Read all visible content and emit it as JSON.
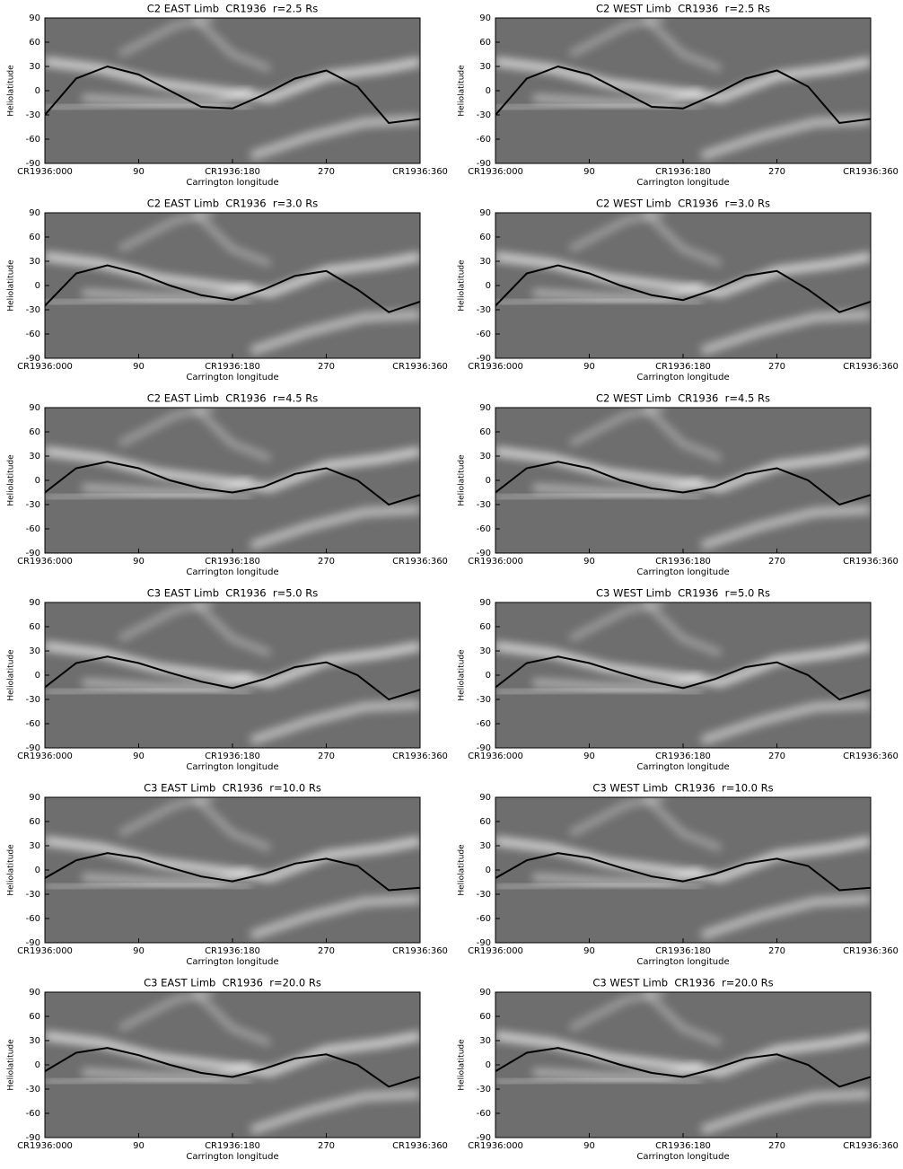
{
  "chart_data": [
    {
      "type": "line",
      "title": "C2 EAST Limb  CR1936  r=2.5 Rs",
      "xlabel": "Carrington longitude",
      "ylabel": "Heliolatitude",
      "x": [
        0,
        30,
        60,
        90,
        120,
        150,
        180,
        210,
        240,
        270,
        300,
        330,
        360
      ],
      "series": [
        {
          "color": "#000000",
          "values": [
            -30,
            15,
            30,
            20,
            0,
            -20,
            -22,
            -5,
            15,
            25,
            5,
            -40,
            -35
          ]
        }
      ],
      "xlim": [
        0,
        360
      ],
      "ylim": [
        -90,
        90
      ],
      "xticks": [
        {
          "value": 0,
          "label": "CR1936:000"
        },
        90,
        {
          "value": 180,
          "label": "CR1936:180"
        },
        270,
        {
          "value": 360,
          "label": "CR1936:360"
        }
      ],
      "yticks": [
        -90,
        -60,
        -30,
        0,
        30,
        60,
        90
      ]
    },
    {
      "type": "line",
      "title": "C2 WEST Limb  CR1936  r=2.5 Rs",
      "xlabel": "Carrington longitude",
      "ylabel": "Heliolatitude",
      "x": [
        0,
        30,
        60,
        90,
        120,
        150,
        180,
        210,
        240,
        270,
        300,
        330,
        360
      ],
      "series": [
        {
          "color": "#000000",
          "values": [
            -30,
            15,
            30,
            20,
            0,
            -20,
            -22,
            -5,
            15,
            25,
            5,
            -40,
            -35
          ]
        }
      ],
      "xlim": [
        0,
        360
      ],
      "ylim": [
        -90,
        90
      ],
      "xticks": [
        {
          "value": 0,
          "label": "CR1936:000"
        },
        90,
        {
          "value": 180,
          "label": "CR1936:180"
        },
        270,
        {
          "value": 360,
          "label": "CR1936:360"
        }
      ],
      "yticks": [
        -90,
        -60,
        -30,
        0,
        30,
        60,
        90
      ]
    },
    {
      "type": "line",
      "title": "C2 EAST Limb  CR1936  r=3.0 Rs",
      "xlabel": "Carrington longitude",
      "ylabel": "Heliolatitude",
      "x": [
        0,
        30,
        60,
        90,
        120,
        150,
        180,
        210,
        240,
        270,
        300,
        330,
        360
      ],
      "series": [
        {
          "color": "#000000",
          "values": [
            -25,
            15,
            25,
            15,
            0,
            -12,
            -18,
            -5,
            12,
            18,
            -5,
            -33,
            -20
          ]
        }
      ],
      "xlim": [
        0,
        360
      ],
      "ylim": [
        -90,
        90
      ],
      "xticks": [
        {
          "value": 0,
          "label": "CR1936:000"
        },
        90,
        {
          "value": 180,
          "label": "CR1936:180"
        },
        270,
        {
          "value": 360,
          "label": "CR1936:360"
        }
      ],
      "yticks": [
        -90,
        -60,
        -30,
        0,
        30,
        60,
        90
      ]
    },
    {
      "type": "line",
      "title": "C2 WEST Limb  CR1936  r=3.0 Rs",
      "xlabel": "Carrington longitude",
      "ylabel": "Heliolatitude",
      "x": [
        0,
        30,
        60,
        90,
        120,
        150,
        180,
        210,
        240,
        270,
        300,
        330,
        360
      ],
      "series": [
        {
          "color": "#000000",
          "values": [
            -25,
            15,
            25,
            15,
            0,
            -12,
            -18,
            -5,
            12,
            18,
            -5,
            -33,
            -20
          ]
        }
      ],
      "xlim": [
        0,
        360
      ],
      "ylim": [
        -90,
        90
      ],
      "xticks": [
        {
          "value": 0,
          "label": "CR1936:000"
        },
        90,
        {
          "value": 180,
          "label": "CR1936:180"
        },
        270,
        {
          "value": 360,
          "label": "CR1936:360"
        }
      ],
      "yticks": [
        -90,
        -60,
        -30,
        0,
        30,
        60,
        90
      ]
    },
    {
      "type": "line",
      "title": "C2 EAST Limb  CR1936  r=4.5 Rs",
      "xlabel": "Carrington longitude",
      "ylabel": "Heliolatitude",
      "x": [
        0,
        30,
        60,
        90,
        120,
        150,
        180,
        210,
        240,
        270,
        300,
        330,
        360
      ],
      "series": [
        {
          "color": "#000000",
          "values": [
            -15,
            15,
            23,
            15,
            0,
            -10,
            -15,
            -8,
            8,
            15,
            0,
            -30,
            -18
          ]
        }
      ],
      "xlim": [
        0,
        360
      ],
      "ylim": [
        -90,
        90
      ],
      "xticks": [
        {
          "value": 0,
          "label": "CR1936:000"
        },
        90,
        {
          "value": 180,
          "label": "CR1936:180"
        },
        270,
        {
          "value": 360,
          "label": "CR1936:360"
        }
      ],
      "yticks": [
        -90,
        -60,
        -30,
        0,
        30,
        60,
        90
      ]
    },
    {
      "type": "line",
      "title": "C2 WEST Limb  CR1936  r=4.5 Rs",
      "xlabel": "Carrington longitude",
      "ylabel": "Heliolatitude",
      "x": [
        0,
        30,
        60,
        90,
        120,
        150,
        180,
        210,
        240,
        270,
        300,
        330,
        360
      ],
      "series": [
        {
          "color": "#000000",
          "values": [
            -15,
            15,
            23,
            15,
            0,
            -10,
            -15,
            -8,
            8,
            15,
            0,
            -30,
            -18
          ]
        }
      ],
      "xlim": [
        0,
        360
      ],
      "ylim": [
        -90,
        90
      ],
      "xticks": [
        {
          "value": 0,
          "label": "CR1936:000"
        },
        90,
        {
          "value": 180,
          "label": "CR1936:180"
        },
        270,
        {
          "value": 360,
          "label": "CR1936:360"
        }
      ],
      "yticks": [
        -90,
        -60,
        -30,
        0,
        30,
        60,
        90
      ]
    },
    {
      "type": "line",
      "title": "C3 EAST Limb  CR1936  r=5.0 Rs",
      "xlabel": "Carrington longitude",
      "ylabel": "Heliolatitude",
      "x": [
        0,
        30,
        60,
        90,
        120,
        150,
        180,
        210,
        240,
        270,
        300,
        330,
        360
      ],
      "series": [
        {
          "color": "#000000",
          "values": [
            -15,
            15,
            23,
            15,
            3,
            -8,
            -16,
            -5,
            10,
            16,
            0,
            -30,
            -18
          ]
        }
      ],
      "xlim": [
        0,
        360
      ],
      "ylim": [
        -90,
        90
      ],
      "xticks": [
        {
          "value": 0,
          "label": "CR1936:000"
        },
        90,
        {
          "value": 180,
          "label": "CR1936:180"
        },
        270,
        {
          "value": 360,
          "label": "CR1936:360"
        }
      ],
      "yticks": [
        -90,
        -60,
        -30,
        0,
        30,
        60,
        90
      ]
    },
    {
      "type": "line",
      "title": "C3 WEST Limb  CR1936  r=5.0 Rs",
      "xlabel": "Carrington longitude",
      "ylabel": "Heliolatitude",
      "x": [
        0,
        30,
        60,
        90,
        120,
        150,
        180,
        210,
        240,
        270,
        300,
        330,
        360
      ],
      "series": [
        {
          "color": "#000000",
          "values": [
            -15,
            15,
            23,
            15,
            3,
            -8,
            -16,
            -5,
            10,
            16,
            0,
            -30,
            -18
          ]
        }
      ],
      "xlim": [
        0,
        360
      ],
      "ylim": [
        -90,
        90
      ],
      "xticks": [
        {
          "value": 0,
          "label": "CR1936:000"
        },
        90,
        {
          "value": 180,
          "label": "CR1936:180"
        },
        270,
        {
          "value": 360,
          "label": "CR1936:360"
        }
      ],
      "yticks": [
        -90,
        -60,
        -30,
        0,
        30,
        60,
        90
      ]
    },
    {
      "type": "line",
      "title": "C3 EAST Limb  CR1936  r=10.0 Rs",
      "xlabel": "Carrington longitude",
      "ylabel": "Heliolatitude",
      "x": [
        0,
        30,
        60,
        90,
        120,
        150,
        180,
        210,
        240,
        270,
        300,
        330,
        360
      ],
      "series": [
        {
          "color": "#000000",
          "values": [
            -10,
            12,
            21,
            15,
            3,
            -8,
            -14,
            -5,
            8,
            14,
            5,
            -25,
            -22
          ]
        }
      ],
      "xlim": [
        0,
        360
      ],
      "ylim": [
        -90,
        90
      ],
      "xticks": [
        {
          "value": 0,
          "label": "CR1936:000"
        },
        90,
        {
          "value": 180,
          "label": "CR1936:180"
        },
        270,
        {
          "value": 360,
          "label": "CR1936:360"
        }
      ],
      "yticks": [
        -90,
        -60,
        -30,
        0,
        30,
        60,
        90
      ]
    },
    {
      "type": "line",
      "title": "C3 WEST Limb  CR1936  r=10.0 Rs",
      "xlabel": "Carrington longitude",
      "ylabel": "Heliolatitude",
      "x": [
        0,
        30,
        60,
        90,
        120,
        150,
        180,
        210,
        240,
        270,
        300,
        330,
        360
      ],
      "series": [
        {
          "color": "#000000",
          "values": [
            -10,
            12,
            21,
            15,
            3,
            -8,
            -14,
            -5,
            8,
            14,
            5,
            -25,
            -22
          ]
        }
      ],
      "xlim": [
        0,
        360
      ],
      "ylim": [
        -90,
        90
      ],
      "xticks": [
        {
          "value": 0,
          "label": "CR1936:000"
        },
        90,
        {
          "value": 180,
          "label": "CR1936:180"
        },
        270,
        {
          "value": 360,
          "label": "CR1936:360"
        }
      ],
      "yticks": [
        -90,
        -60,
        -30,
        0,
        30,
        60,
        90
      ]
    },
    {
      "type": "line",
      "title": "C3 EAST Limb  CR1936  r=20.0 Rs",
      "xlabel": "Carrington longitude",
      "ylabel": "Heliolatitude",
      "x": [
        0,
        30,
        60,
        90,
        120,
        150,
        180,
        210,
        240,
        270,
        300,
        330,
        360
      ],
      "series": [
        {
          "color": "#000000",
          "values": [
            -8,
            15,
            21,
            12,
            0,
            -10,
            -15,
            -5,
            8,
            13,
            0,
            -27,
            -15
          ]
        }
      ],
      "xlim": [
        0,
        360
      ],
      "ylim": [
        -90,
        90
      ],
      "xticks": [
        {
          "value": 0,
          "label": "CR1936:000"
        },
        90,
        {
          "value": 180,
          "label": "CR1936:180"
        },
        270,
        {
          "value": 360,
          "label": "CR1936:360"
        }
      ],
      "yticks": [
        -90,
        -60,
        -30,
        0,
        30,
        60,
        90
      ]
    },
    {
      "type": "line",
      "title": "C3 WEST Limb  CR1936  r=20.0 Rs",
      "xlabel": "Carrington longitude",
      "ylabel": "Heliolatitude",
      "x": [
        0,
        30,
        60,
        90,
        120,
        150,
        180,
        210,
        240,
        270,
        300,
        330,
        360
      ],
      "series": [
        {
          "color": "#000000",
          "values": [
            -8,
            15,
            21,
            12,
            0,
            -10,
            -15,
            -5,
            8,
            13,
            0,
            -27,
            -15
          ]
        }
      ],
      "xlim": [
        0,
        360
      ],
      "ylim": [
        -90,
        90
      ],
      "xticks": [
        {
          "value": 0,
          "label": "CR1936:000"
        },
        90,
        {
          "value": 180,
          "label": "CR1936:180"
        },
        270,
        {
          "value": 360,
          "label": "CR1936:360"
        }
      ],
      "yticks": [
        -90,
        -60,
        -30,
        0,
        30,
        60,
        90
      ]
    }
  ]
}
